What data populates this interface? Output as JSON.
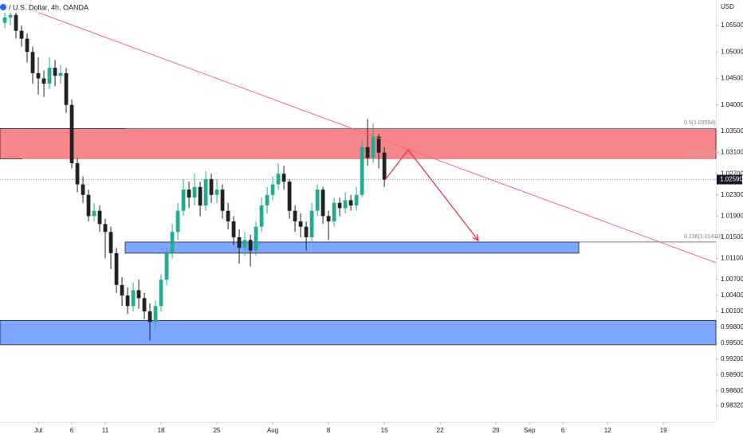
{
  "chart_data": {
    "type": "candlestick",
    "title": "/ U.S. Dollar, 4h, OANDA",
    "y_axis_label": "USD",
    "up_color": "#22ab94",
    "down_color": "#222222",
    "x": [
      -3,
      -2.5,
      -2,
      -1.5,
      -1,
      -0.5,
      0,
      0.5,
      1,
      1.5,
      2,
      2.5,
      3,
      3.5,
      4,
      4.5,
      5,
      5.5,
      6,
      6.5,
      7,
      7.5,
      8,
      8.5,
      9,
      9.5,
      10,
      10.5,
      11,
      11.5,
      12,
      12.5,
      13,
      13.5,
      14,
      14.5,
      15,
      15.5,
      16,
      16.5,
      17,
      17.5,
      18,
      18.5,
      19,
      19.5,
      20,
      20.5,
      21,
      21.5,
      22,
      22.5,
      23,
      23.5,
      24,
      24.5,
      25,
      25.5,
      26,
      26.5,
      27,
      27.5,
      28,
      28.5,
      29,
      29.5,
      30,
      30.5,
      31
    ],
    "open": [
      1.0555,
      1.0565,
      1.057,
      1.054,
      1.0525,
      1.05,
      1.046,
      1.045,
      1.044,
      1.047,
      1.0455,
      1.046,
      1.04,
      1.029,
      1.025,
      1.023,
      1.019,
      1.02,
      1.0175,
      1.016,
      1.012,
      1.006,
      1.004,
      1.002,
      1.005,
      1.0035,
      1.001,
      0.999,
      1.002,
      1.007,
      1.012,
      1.016,
      1.02,
      1.024,
      1.0225,
      1.0245,
      1.021,
      1.026,
      1.023,
      1.024,
      1.02,
      1.018,
      1.015,
      1.013,
      1.0145,
      1.0125,
      1.017,
      1.021,
      1.023,
      1.025,
      1.027,
      1.0255,
      1.02,
      1.018,
      1.017,
      1.015,
      1.02,
      1.024,
      1.019,
      1.018,
      1.0215,
      1.0205,
      1.022,
      1.021,
      1.023,
      1.032,
      1.03,
      1.034,
      1.031
    ],
    "high": [
      1.058,
      1.059,
      1.0575,
      1.055,
      1.0535,
      1.051,
      1.049,
      1.0465,
      1.049,
      1.0485,
      1.0475,
      1.047,
      1.041,
      1.03,
      1.0265,
      1.024,
      1.0215,
      1.021,
      1.0185,
      1.017,
      1.013,
      1.0075,
      1.0055,
      1.0065,
      1.007,
      1.0045,
      1.0025,
      1.003,
      1.008,
      1.013,
      1.0175,
      1.0215,
      1.026,
      1.0255,
      1.027,
      1.0255,
      1.0275,
      1.027,
      1.026,
      1.025,
      1.0215,
      1.019,
      1.0165,
      1.016,
      1.0155,
      1.018,
      1.0225,
      1.0245,
      1.0265,
      1.029,
      1.0285,
      1.026,
      1.021,
      1.0195,
      1.018,
      1.0215,
      1.025,
      1.0245,
      1.02,
      1.0225,
      1.0225,
      1.0235,
      1.023,
      1.0245,
      1.0335,
      1.0373,
      1.0365,
      1.0345,
      1.032
    ],
    "low": [
      1.0545,
      1.055,
      1.0525,
      1.051,
      1.048,
      1.044,
      1.042,
      1.0415,
      1.043,
      1.0435,
      1.044,
      1.0385,
      1.028,
      1.0235,
      1.0215,
      1.018,
      1.018,
      1.016,
      1.011,
      1.009,
      1.0045,
      1.002,
      1.0005,
      1.001,
      1.0015,
      0.9995,
      0.9955,
      0.9975,
      1.001,
      1.006,
      1.011,
      1.0145,
      1.019,
      1.0205,
      1.021,
      1.019,
      1.02,
      1.0215,
      1.0215,
      1.0185,
      1.0165,
      1.0135,
      1.01,
      1.0115,
      1.0095,
      1.0115,
      1.016,
      1.0195,
      1.022,
      1.024,
      1.024,
      1.0185,
      1.016,
      1.015,
      1.0125,
      1.014,
      1.019,
      1.0175,
      1.0145,
      1.017,
      1.019,
      1.0195,
      1.02,
      1.02,
      1.0225,
      1.0285,
      1.029,
      1.028,
      1.0245
    ],
    "close": [
      1.0565,
      1.057,
      1.054,
      1.0525,
      1.05,
      1.046,
      1.045,
      1.044,
      1.047,
      1.0455,
      1.046,
      1.04,
      1.029,
      1.025,
      1.023,
      1.019,
      1.02,
      1.0175,
      1.016,
      1.012,
      1.006,
      1.004,
      1.002,
      1.005,
      1.0035,
      1.001,
      0.999,
      1.002,
      1.007,
      1.012,
      1.016,
      1.02,
      1.024,
      1.0225,
      1.0245,
      1.021,
      1.026,
      1.023,
      1.024,
      1.02,
      1.018,
      1.015,
      1.013,
      1.0145,
      1.0125,
      1.017,
      1.021,
      1.023,
      1.025,
      1.027,
      1.0255,
      1.02,
      1.018,
      1.017,
      1.015,
      1.02,
      1.024,
      1.019,
      1.018,
      1.0215,
      1.0205,
      1.022,
      1.021,
      1.023,
      1.032,
      1.03,
      1.034,
      1.031,
      1.0259
    ],
    "xlim": [
      -3.43,
      60.7
    ],
    "ylim": [
      0.9801,
      1.05981
    ],
    "xticks": [
      {
        "value": 0,
        "label": "Jul"
      },
      {
        "value": 3,
        "label": "6"
      },
      {
        "value": 6,
        "label": "11"
      },
      {
        "value": 11,
        "label": "18"
      },
      {
        "value": 16,
        "label": "25"
      },
      {
        "value": 21,
        "label": "Aug"
      },
      {
        "value": 26,
        "label": "8"
      },
      {
        "value": 31,
        "label": "15"
      },
      {
        "value": 36,
        "label": "22"
      },
      {
        "value": 41,
        "label": "29"
      },
      {
        "value": 44,
        "label": "Sep"
      },
      {
        "value": 47,
        "label": "6"
      },
      {
        "value": 51,
        "label": "12"
      },
      {
        "value": 56,
        "label": "19"
      }
    ],
    "yticks": [
      {
        "value": 1.055,
        "label": "1.05500"
      },
      {
        "value": 1.05,
        "label": "1.05000"
      },
      {
        "value": 1.045,
        "label": "1.04500"
      },
      {
        "value": 1.04,
        "label": "1.04000"
      },
      {
        "value": 1.035,
        "label": "1.03500"
      },
      {
        "value": 1.031,
        "label": "1.03100"
      },
      {
        "value": 1.027,
        "label": "1.02700"
      },
      {
        "value": 1.023,
        "label": "1.02300"
      },
      {
        "value": 1.019,
        "label": "1.01900"
      },
      {
        "value": 1.015,
        "label": "1.01500"
      },
      {
        "value": 1.011,
        "label": "1.01100"
      },
      {
        "value": 1.007,
        "label": "1.00700"
      },
      {
        "value": 1.004,
        "label": "1.00400"
      },
      {
        "value": 1.001,
        "label": "1.00100"
      },
      {
        "value": 0.998,
        "label": "0.99800"
      },
      {
        "value": 0.995,
        "label": "0.99500"
      },
      {
        "value": 0.992,
        "label": "0.99200"
      },
      {
        "value": 0.989,
        "label": "0.98900"
      },
      {
        "value": 0.986,
        "label": "0.98600"
      },
      {
        "value": 0.9832,
        "label": "0.98320"
      }
    ],
    "zones": [
      {
        "x": [
          -3.43,
          60.7
        ],
        "y": [
          1.02981,
          1.03554
        ],
        "color": "#f7868c"
      },
      {
        "x": [
          7.78,
          48.42
        ],
        "y": [
          1.012,
          1.0141
        ],
        "color": "#7da6ff"
      },
      {
        "x": [
          -3.43,
          60.7
        ],
        "y": [
          0.9947,
          0.9993
        ],
        "color": "#7da6ff"
      }
    ],
    "fib_levels": [
      {
        "value": 1.03554,
        "label": "0.5(1.03554)",
        "x_start": 7.78,
        "color": "#787b86"
      },
      {
        "value": 1.02981,
        "label": "0.236(1.02981)",
        "x_start": -1.43,
        "color": "#d9a0a4"
      },
      {
        "value": 1.0141,
        "label": "0.236(1.01410)",
        "x_start": 48.42,
        "color": "#787b86"
      }
    ],
    "trendline": {
      "x": [
        -2.0,
        60.7
      ],
      "y": [
        1.059,
        1.0102
      ],
      "color": "#f06a7a"
    },
    "projection": {
      "x": [
        31.06,
        33.13,
        39.42
      ],
      "y": [
        1.02582,
        1.03154,
        1.01439
      ],
      "color": "#e8344e"
    },
    "last_price": {
      "value": 1.0259,
      "label": "1.02590"
    }
  }
}
